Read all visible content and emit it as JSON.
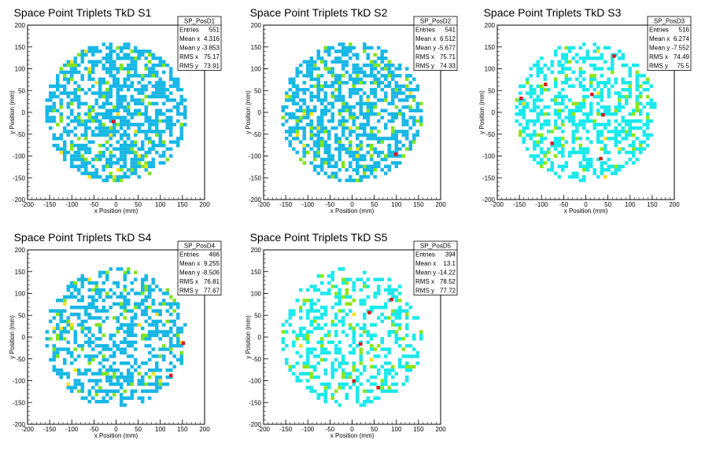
{
  "chart_data": [
    {
      "type": "heatmap",
      "title": "Space Point Triplets TkD S1",
      "xlabel": "x Position (mm)",
      "ylabel": "y Position (mm)",
      "xlim": [
        -200,
        200
      ],
      "ylim": [
        -200,
        200
      ],
      "xticks": [
        "-200",
        "-150",
        "-100",
        "-50",
        "0",
        "50",
        "100",
        "150",
        "200"
      ],
      "yticks": [
        "-200",
        "-150",
        "-100",
        "-50",
        "0",
        "50",
        "100",
        "150",
        "200"
      ],
      "bin_width_mm": 8,
      "density": 0.55,
      "colors": {
        "low": "#17b7e6",
        "mid": "#7fe51a",
        "high": "#f5e11a",
        "top": "#d91a1a"
      },
      "color_mix": [
        0.87,
        0.11,
        0.01
      ],
      "max_bins": [
        [
          -10,
          -25
        ]
      ],
      "stats": {
        "name": "SP_PosD1",
        "rows": [
          {
            "label": "Entries",
            "value": "551"
          },
          {
            "label": "Mean x",
            "value": "4.316"
          },
          {
            "label": "Mean y",
            "value": "-3.853"
          },
          {
            "label": "RMS x",
            "value": "75.17"
          },
          {
            "label": "RMS y",
            "value": "73.91"
          }
        ]
      }
    },
    {
      "type": "heatmap",
      "title": "Space Point Triplets TkD S2",
      "xlabel": "x Position (mm)",
      "ylabel": "y Position (mm)",
      "xlim": [
        -200,
        200
      ],
      "ylim": [
        -200,
        200
      ],
      "xticks": [
        "-200",
        "-150",
        "-100",
        "-50",
        "0",
        "50",
        "100",
        "150",
        "200"
      ],
      "yticks": [
        "-200",
        "-150",
        "-100",
        "-50",
        "0",
        "50",
        "100",
        "150",
        "200"
      ],
      "bin_width_mm": 8,
      "density": 0.55,
      "colors": {
        "low": "#17b7e6",
        "mid": "#7fe51a",
        "high": "#f5e11a",
        "top": "#d91a1a"
      },
      "color_mix": [
        0.87,
        0.11,
        0.01
      ],
      "max_bins": [
        [
          95,
          -100
        ]
      ],
      "stats": {
        "name": "SP_PosD2",
        "rows": [
          {
            "label": "Entries",
            "value": "541"
          },
          {
            "label": "Mean x",
            "value": "6.512"
          },
          {
            "label": "Mean y",
            "value": "-5.677"
          },
          {
            "label": "RMS x",
            "value": "75.71"
          },
          {
            "label": "RMS y",
            "value": "74.33"
          }
        ]
      }
    },
    {
      "type": "heatmap",
      "title": "Space Point Triplets TkD S3",
      "xlabel": "x Position (mm)",
      "ylabel": "y Position (mm)",
      "xlim": [
        -200,
        200
      ],
      "ylim": [
        -200,
        200
      ],
      "xticks": [
        "-200",
        "-150",
        "-100",
        "-50",
        "0",
        "50",
        "100",
        "150",
        "200"
      ],
      "yticks": [
        "-200",
        "-150",
        "-100",
        "-50",
        "0",
        "50",
        "100",
        "150",
        "200"
      ],
      "bin_width_mm": 8,
      "density": 0.45,
      "colors": {
        "low": "#19e9ec",
        "mid": "#8de614",
        "high": "#f5e11a",
        "top": "#d91a1a"
      },
      "color_mix": [
        0.86,
        0.13,
        0.005
      ],
      "max_bins": [
        [
          -150,
          28
        ],
        [
          -95,
          60
        ],
        [
          10,
          37
        ],
        [
          60,
          125
        ],
        [
          35,
          -10
        ],
        [
          30,
          -110
        ],
        [
          -80,
          -75
        ]
      ],
      "stats": {
        "name": "SP_PosD3",
        "rows": [
          {
            "label": "Entries",
            "value": "516"
          },
          {
            "label": "Mean x",
            "value": "6.274"
          },
          {
            "label": "Mean y",
            "value": "-7.552"
          },
          {
            "label": "RMS x",
            "value": "74.49"
          },
          {
            "label": "RMS y",
            "value": "75.5"
          }
        ]
      }
    },
    {
      "type": "heatmap",
      "title": "Space Point Triplets TkD S4",
      "xlabel": "x Position (mm)",
      "ylabel": "y Position (mm)",
      "xlim": [
        -200,
        200
      ],
      "ylim": [
        -200,
        200
      ],
      "xticks": [
        "-200",
        "-150",
        "-100",
        "-50",
        "0",
        "50",
        "100",
        "150",
        "200"
      ],
      "yticks": [
        "-200",
        "-150",
        "-100",
        "-50",
        "0",
        "50",
        "100",
        "150",
        "200"
      ],
      "bin_width_mm": 8,
      "density": 0.48,
      "colors": {
        "low": "#17b7e6",
        "mid": "#7fe51a",
        "high": "#f5e11a",
        "top": "#d91a1a"
      },
      "color_mix": [
        0.88,
        0.1,
        0.015
      ],
      "max_bins": [
        [
          148,
          -18
        ],
        [
          120,
          -92
        ]
      ],
      "stats": {
        "name": "SP_PosD4",
        "rows": [
          {
            "label": "Entries",
            "value": "466"
          },
          {
            "label": "Mean x",
            "value": "9.255"
          },
          {
            "label": "Mean y",
            "value": "-8.506"
          },
          {
            "label": "RMS x",
            "value": "76.81"
          },
          {
            "label": "RMS y",
            "value": "77.67"
          }
        ]
      }
    },
    {
      "type": "heatmap",
      "title": "Space Point Triplets TkD S5",
      "xlabel": "x Position (mm)",
      "ylabel": "y Position (mm)",
      "xlim": [
        -200,
        200
      ],
      "ylim": [
        -200,
        200
      ],
      "xticks": [
        "-200",
        "-150",
        "-100",
        "-50",
        "0",
        "50",
        "100",
        "150",
        "200"
      ],
      "yticks": [
        "-200",
        "-150",
        "-100",
        "-50",
        "0",
        "50",
        "100",
        "150",
        "200"
      ],
      "bin_width_mm": 8,
      "density": 0.38,
      "colors": {
        "low": "#19e9ec",
        "mid": "#8de614",
        "high": "#f5e11a",
        "top": "#d91a1a"
      },
      "color_mix": [
        0.86,
        0.13,
        0.005
      ],
      "max_bins": [
        [
          35,
          52
        ],
        [
          85,
          82
        ],
        [
          15,
          -20
        ],
        [
          55,
          -120
        ],
        [
          0,
          -105
        ]
      ],
      "stats": {
        "name": "SP_PosD5",
        "rows": [
          {
            "label": "Entries",
            "value": "394"
          },
          {
            "label": "Mean x",
            "value": "13.1"
          },
          {
            "label": "Mean y",
            "value": "-14.22"
          },
          {
            "label": "RMS x",
            "value": "78.52"
          },
          {
            "label": "RMS y",
            "value": "77.72"
          }
        ]
      }
    }
  ]
}
